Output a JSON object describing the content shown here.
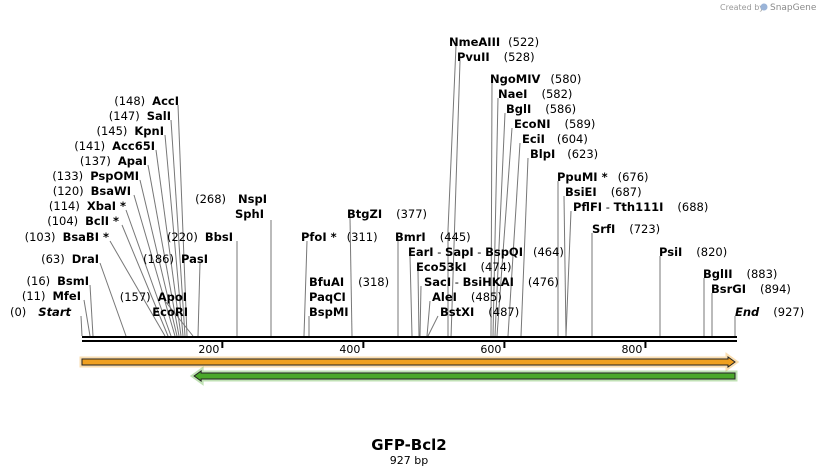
{
  "branding": {
    "created_by": "Created by",
    "product": "SnapGene"
  },
  "construct": {
    "name": "GFP-Bcl2",
    "length_label": "927 bp"
  },
  "scale": {
    "start_bp": 1,
    "end_bp": 927,
    "ticks": [
      {
        "bp": 200,
        "label": "200"
      },
      {
        "bp": 400,
        "label": "400"
      },
      {
        "bp": 600,
        "label": "600"
      },
      {
        "bp": 800,
        "label": "800"
      }
    ]
  },
  "features": [
    {
      "id": "forward-arrow",
      "direction": "forward",
      "start_bp": 1,
      "end_bp": 927,
      "color": "#f0a020"
    },
    {
      "id": "reverse-arrow",
      "direction": "reverse",
      "start_bp": 160,
      "end_bp": 927,
      "color": "#4aa82a"
    }
  ],
  "sites": [
    {
      "id": "nmeaiii",
      "name": "NmeAIII",
      "pos": "(522)",
      "site": 522
    },
    {
      "id": "pvuii",
      "name": "PvuII",
      "pos": "(528)",
      "site": 528
    },
    {
      "id": "ngomiv",
      "name": "NgoMIV",
      "pos": "(580)",
      "site": 580
    },
    {
      "id": "naei",
      "name": "NaeI",
      "pos": "(582)",
      "site": 582
    },
    {
      "id": "bgli",
      "name": "BglI",
      "pos": "(586)",
      "site": 586
    },
    {
      "id": "econi",
      "name": "EcoNI",
      "pos": "(589)",
      "site": 589
    },
    {
      "id": "ecii",
      "name": "EciI",
      "pos": "(604)",
      "site": 604
    },
    {
      "id": "blpi",
      "name": "BlpI",
      "pos": "(623)",
      "site": 623
    },
    {
      "id": "ppumi",
      "name": "PpuMI *",
      "pos": "(676)",
      "site": 676
    },
    {
      "id": "bsiei",
      "name": "BsiEI",
      "pos": "(687)",
      "site": 687
    },
    {
      "id": "pflfi",
      "name": "PflFI",
      "sep": " - ",
      "name2": "Tth111I",
      "pos": "(688)",
      "site": 688
    },
    {
      "id": "srfi",
      "name": "SrfI",
      "pos": "(723)",
      "site": 723
    },
    {
      "id": "psii",
      "name": "PsiI",
      "pos": "(820)",
      "site": 820
    },
    {
      "id": "bglii",
      "name": "BglII",
      "pos": "(883)",
      "site": 883
    },
    {
      "id": "bsrgi",
      "name": "BsrGI",
      "pos": "(894)",
      "site": 894
    },
    {
      "id": "end",
      "name": "End",
      "pos": "(927)",
      "site": 927
    },
    {
      "id": "acci",
      "name": "AccI",
      "pos": "(148)",
      "site": 148
    },
    {
      "id": "sali",
      "name": "SalI",
      "pos": "(147)",
      "site": 147
    },
    {
      "id": "kpni",
      "name": "KpnI",
      "pos": "(145)",
      "site": 145
    },
    {
      "id": "acc65i",
      "name": "Acc65I",
      "pos": "(141)",
      "site": 141
    },
    {
      "id": "apai",
      "name": "ApaI",
      "pos": "(137)",
      "site": 137
    },
    {
      "id": "pspomi",
      "name": "PspOMI",
      "pos": "(133)",
      "site": 133
    },
    {
      "id": "bsawi",
      "name": "BsaWI",
      "pos": "(120)",
      "site": 120
    },
    {
      "id": "xbai",
      "name": "XbaI *",
      "pos": "(114)",
      "site": 114
    },
    {
      "id": "bcli",
      "name": "BclI *",
      "pos": "(104)",
      "site": 104
    },
    {
      "id": "bsabi",
      "name": "BsaBI *",
      "pos": "(103)",
      "site": 103
    },
    {
      "id": "drai",
      "name": "DraI",
      "pos": "(63)",
      "site": 63
    },
    {
      "id": "bsmi",
      "name": "BsmI",
      "pos": "(16)",
      "site": 16
    },
    {
      "id": "mfei",
      "name": "MfeI",
      "pos": "(11)",
      "site": 11
    },
    {
      "id": "start",
      "name": "Start",
      "pos": "(0)",
      "site": 0
    },
    {
      "id": "apoi",
      "name": "ApoI",
      "pos": "(157)",
      "site": 157
    },
    {
      "id": "ecori",
      "name": "EcoRI",
      "pos": "",
      "site": 157
    },
    {
      "id": "pasi",
      "name": "PasI",
      "pos": "(186)",
      "site": 186
    },
    {
      "id": "bbsi",
      "name": "BbsI",
      "pos": "(220)",
      "site": 220
    },
    {
      "id": "nspi",
      "name": "NspI",
      "pos": "(268)",
      "site": 268
    },
    {
      "id": "sphi",
      "name": "SphI",
      "pos": "",
      "site": 268
    },
    {
      "id": "pfoi",
      "name": "PfoI *",
      "pos": "(311)",
      "site": 311
    },
    {
      "id": "bfuai",
      "name": "BfuAI",
      "pos": "(318)",
      "site": 318
    },
    {
      "id": "paqci",
      "name": "PaqCI",
      "pos": "",
      "site": 318
    },
    {
      "id": "bspmi",
      "name": "BspMI",
      "pos": "",
      "site": 318
    },
    {
      "id": "btgzi",
      "name": "BtgZI",
      "pos": "(377)",
      "site": 377
    },
    {
      "id": "bmri",
      "name": "BmrI",
      "pos": "(445)",
      "site": 445
    },
    {
      "id": "eari",
      "name": "EarI",
      "sep": " - ",
      "name2": "SapI",
      "sep2": " - ",
      "name3": "BspQI",
      "pos": "(464)",
      "site": 464
    },
    {
      "id": "eco53ki",
      "name": "Eco53kI",
      "pos": "(474)",
      "site": 474
    },
    {
      "id": "saci",
      "name": "SacI",
      "sep": " - ",
      "name2": "BsiHKAI",
      "pos": "(476)",
      "site": 476
    },
    {
      "id": "alei",
      "name": "AleI",
      "pos": "(485)",
      "site": 485
    },
    {
      "id": "bstxi",
      "name": "BstXI",
      "pos": "(487)",
      "site": 487
    }
  ]
}
